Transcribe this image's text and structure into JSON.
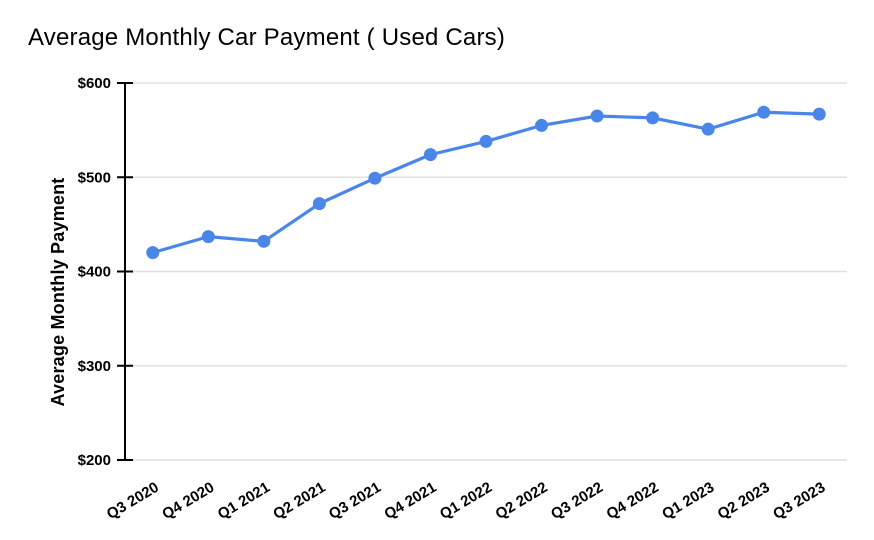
{
  "chart_data": {
    "type": "line",
    "title": "Average Monthly Car Payment ( Used Cars)",
    "ylabel": "Average Monthly Payment",
    "xlabel": "",
    "categories": [
      "Q3 2020",
      "Q4 2020",
      "Q1 2021",
      "Q2 2021",
      "Q3 2021",
      "Q4 2021",
      "Q1 2022",
      "Q2 2022",
      "Q3 2022",
      "Q4 2022",
      "Q1 2023",
      "Q2 2023",
      "Q3 2023"
    ],
    "series": [
      {
        "name": "Average Monthly Payment",
        "values": [
          420,
          437,
          432,
          472,
          499,
          524,
          538,
          555,
          565,
          563,
          551,
          569,
          567
        ]
      }
    ],
    "ylim": [
      200,
      600
    ],
    "y_ticks": [
      200,
      300,
      400,
      500,
      600
    ],
    "y_tick_labels": [
      "$200",
      "$300",
      "$400",
      "$500",
      "$600"
    ],
    "grid": "horizontal",
    "legend": "none",
    "marker": "circle",
    "colors": {
      "series": "#4a86e8",
      "gridline": "#e0e0e0",
      "axis": "#000000",
      "title_text": "#000000",
      "background": "#ffffff"
    }
  }
}
